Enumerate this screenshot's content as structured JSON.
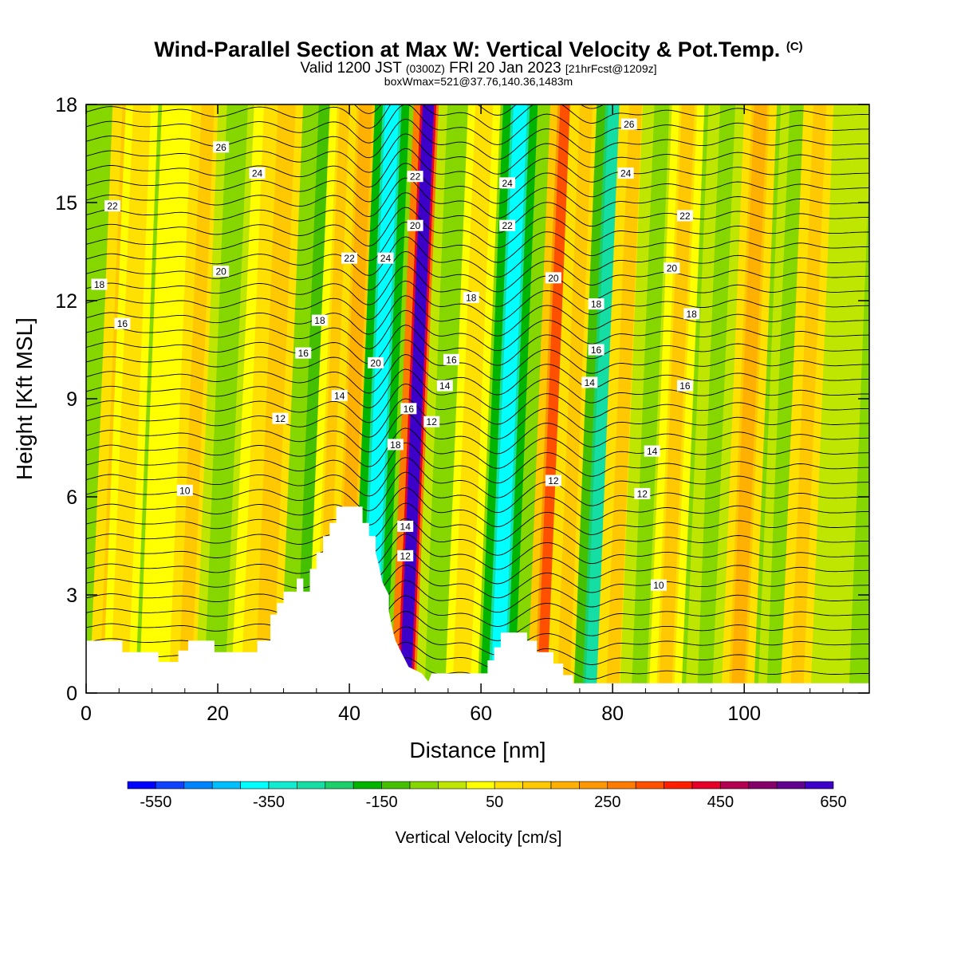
{
  "header": {
    "title_main": "Wind-Parallel Section at Max W: Vertical Velocity & Pot.Temp.",
    "title_mark": "(C)",
    "valid_prefix": "Valid 1200 JST",
    "valid_utc": "(0300Z)",
    "valid_date": "FRI 20 Jan 2023",
    "forecast": "[21hrFcst@1209z]",
    "box_info": "boxWmax=521@37.76,140.36,1483m"
  },
  "chart_data": {
    "type": "heatmap",
    "xlabel": "Distance [nm]",
    "ylabel": "Height [Kft MSL]",
    "xlim": [
      0,
      119
    ],
    "ylim": [
      0,
      18
    ],
    "x_ticks": [
      0,
      20,
      40,
      60,
      80,
      100
    ],
    "y_ticks": [
      0,
      3,
      6,
      9,
      12,
      15,
      18
    ],
    "colorbar": {
      "title": "Vertical Velocity [cm/s]",
      "levels_min": -600,
      "levels_max": 700,
      "step": 50,
      "tick_values": [
        -550,
        -350,
        -150,
        50,
        250,
        450,
        650
      ],
      "colors": [
        "#0000ff",
        "#0f41ff",
        "#0083ff",
        "#00bfff",
        "#00ffff",
        "#11ecd0",
        "#14dea4",
        "#1bcf6a",
        "#00b400",
        "#45c000",
        "#86d600",
        "#bfe600",
        "#ffff00",
        "#ffe000",
        "#ffc800",
        "#ffb000",
        "#ff9800",
        "#ff7c00",
        "#ff5000",
        "#ff1e00",
        "#e60028",
        "#b40050",
        "#850069",
        "#62008f",
        "#3c00c8"
      ]
    },
    "vertical_velocity_bands": [
      {
        "x": 3,
        "w": 120
      },
      {
        "x": 5,
        "w": 80
      },
      {
        "x": 10.5,
        "w": 40
      },
      {
        "x": 15,
        "w": 120
      },
      {
        "x": 19.5,
        "w": -80
      },
      {
        "x": 24.5,
        "w": 60
      },
      {
        "x": 27,
        "w": 140
      },
      {
        "x": 33,
        "w": -130
      },
      {
        "x": 36,
        "w": 100
      },
      {
        "x": 39,
        "w": 160
      },
      {
        "x": 43,
        "w": -400
      },
      {
        "x": 48.5,
        "w": 620
      },
      {
        "x": 53,
        "w": -100
      },
      {
        "x": 57,
        "w": 80
      },
      {
        "x": 62.5,
        "w": -380
      },
      {
        "x": 69.5,
        "w": 300
      },
      {
        "x": 72.5,
        "w": 120
      },
      {
        "x": 77,
        "w": -280
      },
      {
        "x": 80,
        "w": 120
      },
      {
        "x": 84,
        "w": -60
      },
      {
        "x": 88,
        "w": 110
      },
      {
        "x": 94,
        "w": -60
      },
      {
        "x": 99,
        "w": 150
      },
      {
        "x": 105,
        "w": -80
      },
      {
        "x": 108,
        "w": 120
      },
      {
        "x": 113,
        "w": -40
      }
    ],
    "theta_contour_labels": [
      {
        "x": 20.5,
        "y": 16.7,
        "label": "26"
      },
      {
        "x": 26,
        "y": 15.9,
        "label": "24"
      },
      {
        "x": 4,
        "y": 14.9,
        "label": "22"
      },
      {
        "x": 20.5,
        "y": 12.9,
        "label": "20"
      },
      {
        "x": 2,
        "y": 12.5,
        "label": "18"
      },
      {
        "x": 5.5,
        "y": 11.3,
        "label": "16"
      },
      {
        "x": 35.5,
        "y": 11.4,
        "label": "18"
      },
      {
        "x": 33,
        "y": 10.4,
        "label": "16"
      },
      {
        "x": 38.5,
        "y": 9.1,
        "label": "14"
      },
      {
        "x": 29.5,
        "y": 8.4,
        "label": "12"
      },
      {
        "x": 15,
        "y": 6.2,
        "label": "10"
      },
      {
        "x": 40,
        "y": 13.3,
        "label": "22"
      },
      {
        "x": 45.5,
        "y": 13.3,
        "label": "24"
      },
      {
        "x": 50,
        "y": 15.8,
        "label": "22"
      },
      {
        "x": 50,
        "y": 14.3,
        "label": "20"
      },
      {
        "x": 44,
        "y": 10.1,
        "label": "20"
      },
      {
        "x": 49,
        "y": 8.7,
        "label": "16"
      },
      {
        "x": 47,
        "y": 7.6,
        "label": "18"
      },
      {
        "x": 48.5,
        "y": 5.1,
        "label": "14"
      },
      {
        "x": 48.5,
        "y": 4.2,
        "label": "12"
      },
      {
        "x": 52.5,
        "y": 8.3,
        "label": "12"
      },
      {
        "x": 54.5,
        "y": 9.4,
        "label": "14"
      },
      {
        "x": 55.5,
        "y": 10.2,
        "label": "16"
      },
      {
        "x": 58.5,
        "y": 12.1,
        "label": "18"
      },
      {
        "x": 64,
        "y": 15.6,
        "label": "24"
      },
      {
        "x": 64,
        "y": 14.3,
        "label": "22"
      },
      {
        "x": 71,
        "y": 12.7,
        "label": "20"
      },
      {
        "x": 71,
        "y": 6.5,
        "label": "12"
      },
      {
        "x": 77.5,
        "y": 11.9,
        "label": "18"
      },
      {
        "x": 77.5,
        "y": 10.5,
        "label": "16"
      },
      {
        "x": 76.5,
        "y": 9.5,
        "label": "14"
      },
      {
        "x": 82.5,
        "y": 17.4,
        "label": "26"
      },
      {
        "x": 82,
        "y": 15.9,
        "label": "24"
      },
      {
        "x": 91,
        "y": 14.6,
        "label": "22"
      },
      {
        "x": 89,
        "y": 13.0,
        "label": "20"
      },
      {
        "x": 92,
        "y": 11.6,
        "label": "18"
      },
      {
        "x": 91,
        "y": 9.4,
        "label": "16"
      },
      {
        "x": 86,
        "y": 7.4,
        "label": "14"
      },
      {
        "x": 84.5,
        "y": 6.1,
        "label": "12"
      },
      {
        "x": 87,
        "y": 3.3,
        "label": "10"
      }
    ],
    "terrain_height_kft": [
      {
        "x": 0,
        "y": 1.6
      },
      {
        "x": 5.5,
        "y": 1.6
      },
      {
        "x": 5.5,
        "y": 1.25
      },
      {
        "x": 11,
        "y": 1.25
      },
      {
        "x": 11,
        "y": 0.95
      },
      {
        "x": 14,
        "y": 0.95
      },
      {
        "x": 14,
        "y": 1.3
      },
      {
        "x": 15.5,
        "y": 1.3
      },
      {
        "x": 15.5,
        "y": 1.6
      },
      {
        "x": 19.5,
        "y": 1.6
      },
      {
        "x": 19.5,
        "y": 1.25
      },
      {
        "x": 26,
        "y": 1.25
      },
      {
        "x": 26,
        "y": 1.6
      },
      {
        "x": 28,
        "y": 1.6
      },
      {
        "x": 28,
        "y": 2.4
      },
      {
        "x": 29,
        "y": 2.4
      },
      {
        "x": 29,
        "y": 2.75
      },
      {
        "x": 30,
        "y": 2.75
      },
      {
        "x": 30,
        "y": 3.1
      },
      {
        "x": 32,
        "y": 3.1
      },
      {
        "x": 32,
        "y": 3.5
      },
      {
        "x": 33,
        "y": 3.5
      },
      {
        "x": 33,
        "y": 3.1
      },
      {
        "x": 34,
        "y": 3.1
      },
      {
        "x": 34,
        "y": 3.8
      },
      {
        "x": 35,
        "y": 3.8
      },
      {
        "x": 35,
        "y": 4.3
      },
      {
        "x": 36,
        "y": 4.3
      },
      {
        "x": 36,
        "y": 4.8
      },
      {
        "x": 37,
        "y": 4.8
      },
      {
        "x": 37,
        "y": 5.2
      },
      {
        "x": 38,
        "y": 5.2
      },
      {
        "x": 38,
        "y": 5.7
      },
      {
        "x": 42,
        "y": 5.7
      },
      {
        "x": 42,
        "y": 5.2
      },
      {
        "x": 43,
        "y": 5.2
      },
      {
        "x": 43,
        "y": 4.8
      },
      {
        "x": 44,
        "y": 4.8
      },
      {
        "x": 44,
        "y": 4.3
      },
      {
        "x": 44.5,
        "y": 3.9
      },
      {
        "x": 45,
        "y": 3.4
      },
      {
        "x": 46,
        "y": 3.0
      },
      {
        "x": 46,
        "y": 2.5
      },
      {
        "x": 46.5,
        "y": 2.0
      },
      {
        "x": 47,
        "y": 1.6
      },
      {
        "x": 48,
        "y": 1.2
      },
      {
        "x": 49,
        "y": 0.8
      },
      {
        "x": 51,
        "y": 0.6
      },
      {
        "x": 52,
        "y": 0.35
      },
      {
        "x": 52.5,
        "y": 0.6
      },
      {
        "x": 61,
        "y": 0.6
      },
      {
        "x": 61,
        "y": 1.0
      },
      {
        "x": 62,
        "y": 1.0
      },
      {
        "x": 62,
        "y": 1.4
      },
      {
        "x": 63,
        "y": 1.4
      },
      {
        "x": 63,
        "y": 1.85
      },
      {
        "x": 67,
        "y": 1.85
      },
      {
        "x": 67,
        "y": 1.6
      },
      {
        "x": 68.5,
        "y": 1.6
      },
      {
        "x": 68.5,
        "y": 1.25
      },
      {
        "x": 71,
        "y": 1.25
      },
      {
        "x": 71,
        "y": 0.9
      },
      {
        "x": 72.5,
        "y": 0.9
      },
      {
        "x": 72.5,
        "y": 0.55
      },
      {
        "x": 74,
        "y": 0.55
      },
      {
        "x": 74,
        "y": 0.3
      },
      {
        "x": 119,
        "y": 0.3
      }
    ]
  }
}
